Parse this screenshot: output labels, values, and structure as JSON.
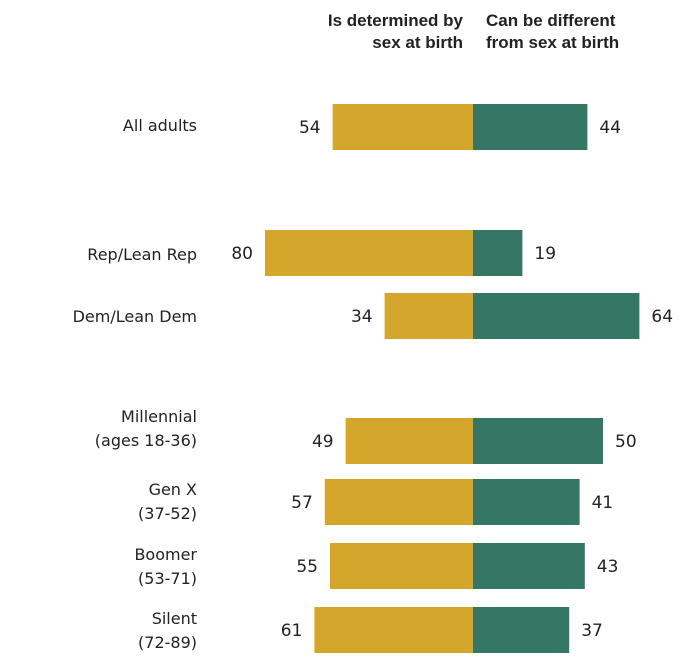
{
  "chart_data": {
    "type": "bar",
    "legend": [
      {
        "lines": [
          "Is determined by",
          "sex at birth"
        ],
        "color": "#D4A72C"
      },
      {
        "lines": [
          "Can be different",
          "from sex at birth"
        ],
        "color": "#347764"
      }
    ],
    "series": [
      {
        "values": [
          54,
          80,
          34,
          49,
          57,
          55,
          61
        ],
        "color": "#D4A72C"
      },
      {
        "values": [
          44,
          19,
          64,
          50,
          41,
          43,
          37
        ],
        "color": "#347764"
      }
    ],
    "categories": [
      {
        "lines": [
          "All adults"
        ]
      },
      {
        "lines": [
          "Rep/Lean Rep"
        ]
      },
      {
        "lines": [
          "Dem/Lean Dem"
        ]
      },
      {
        "lines": [
          "Millennial",
          "(ages 18-36)"
        ]
      },
      {
        "lines": [
          "Gen X",
          "(37-52)"
        ]
      },
      {
        "lines": [
          "Boomer",
          "(53-71)"
        ]
      },
      {
        "lines": [
          "Silent",
          "(72-89)"
        ]
      }
    ],
    "grid": false,
    "legend_position": "top"
  }
}
